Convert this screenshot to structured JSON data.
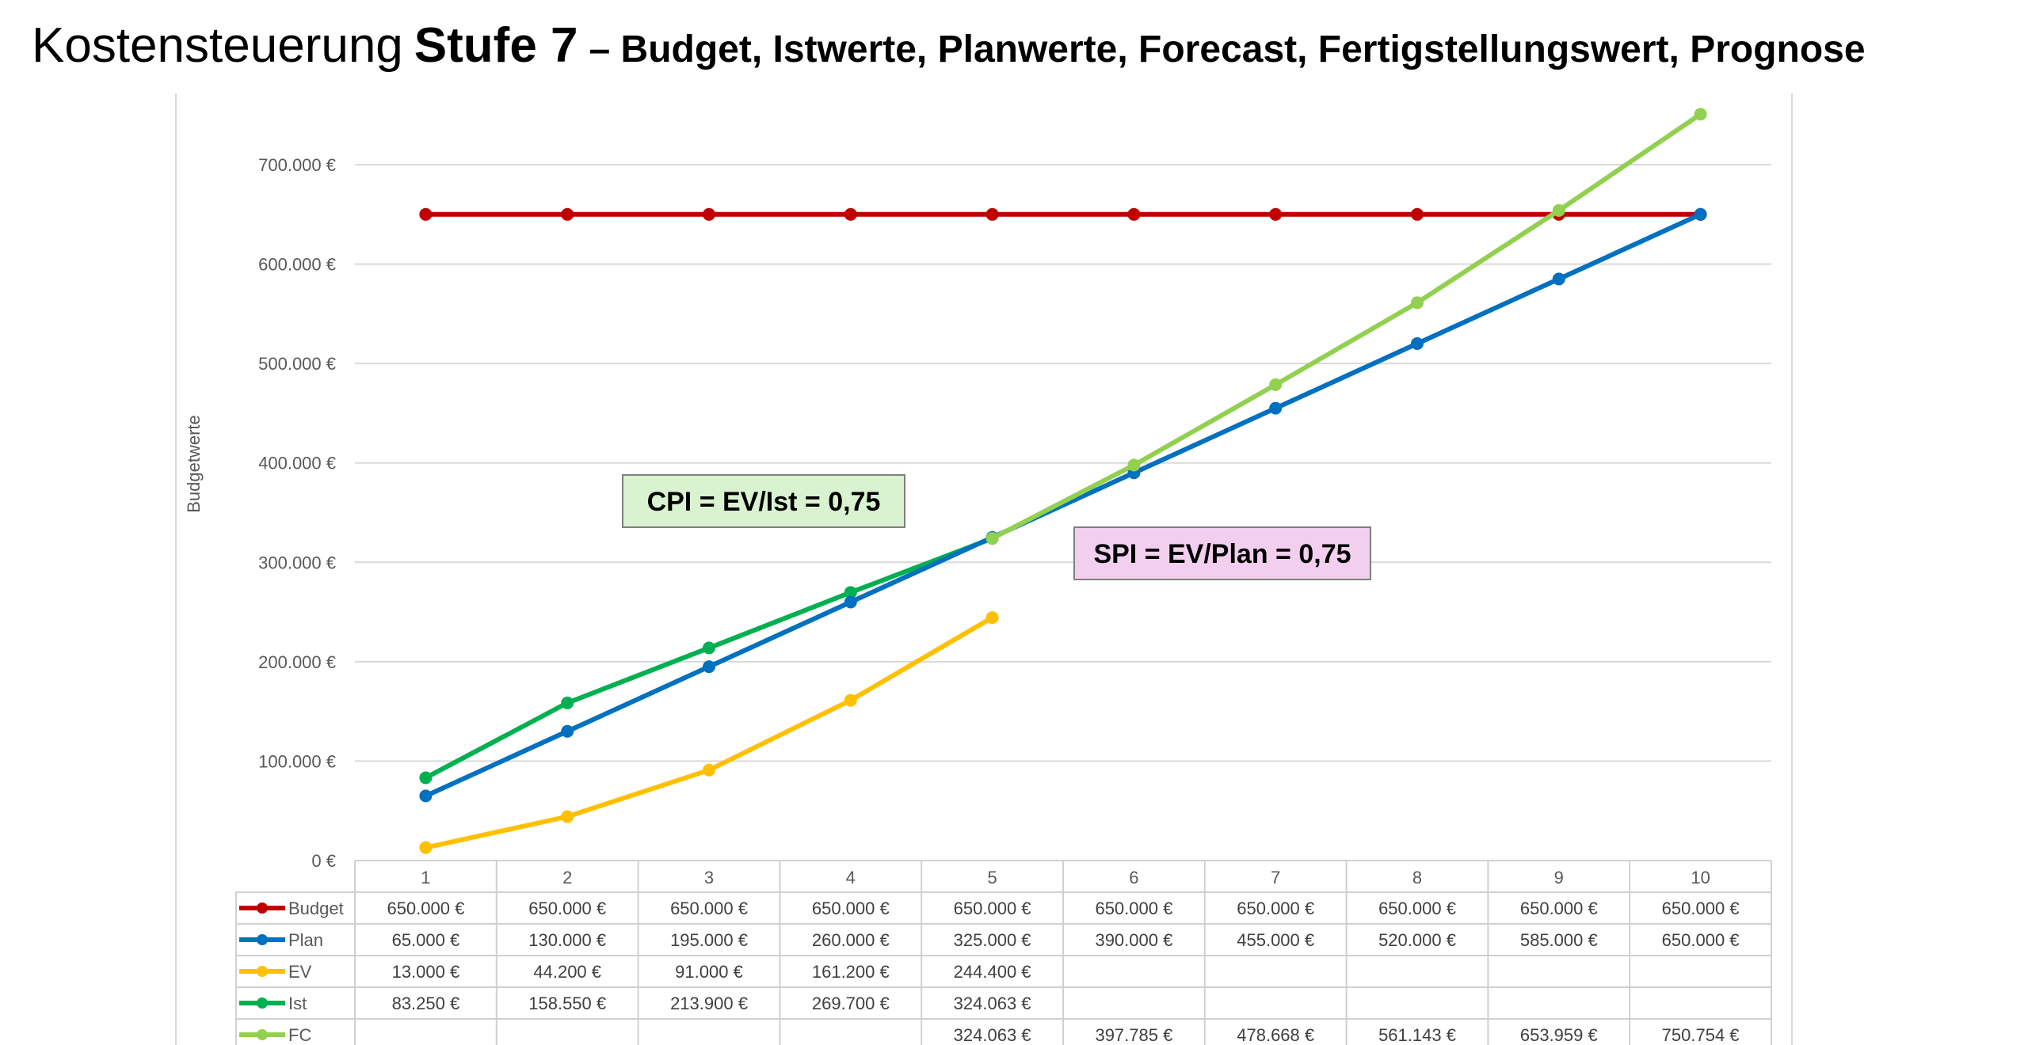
{
  "title": {
    "main": "Kostensteuerung",
    "stage": "Stufe 7",
    "subtitle": "– Budget, Istwerte, Planwerte, Forecast, Fertigstellungswert, Prognose"
  },
  "chart_data": {
    "type": "line",
    "ylabel": "Budgetwerte",
    "ylim": [
      0,
      700000
    ],
    "yticks": [
      0,
      100000,
      200000,
      300000,
      400000,
      500000,
      600000,
      700000
    ],
    "ytick_labels": [
      "0 €",
      "100.000 €",
      "200.000 €",
      "300.000 €",
      "400.000 €",
      "500.000 €",
      "600.000 €",
      "700.000 €"
    ],
    "categories": [
      "1",
      "2",
      "3",
      "4",
      "5",
      "6",
      "7",
      "8",
      "9",
      "10"
    ],
    "grid": true,
    "legend": "data-table",
    "series": [
      {
        "name": "Budget",
        "color": "#c00000",
        "values": [
          650000,
          650000,
          650000,
          650000,
          650000,
          650000,
          650000,
          650000,
          650000,
          650000
        ],
        "labels": [
          "650.000 €",
          "650.000 €",
          "650.000 €",
          "650.000 €",
          "650.000 €",
          "650.000 €",
          "650.000 €",
          "650.000 €",
          "650.000 €",
          "650.000 €"
        ]
      },
      {
        "name": "Plan",
        "color": "#0070c0",
        "values": [
          65000,
          130000,
          195000,
          260000,
          325000,
          390000,
          455000,
          520000,
          585000,
          650000
        ],
        "labels": [
          "65.000 €",
          "130.000 €",
          "195.000 €",
          "260.000 €",
          "325.000 €",
          "390.000 €",
          "455.000 €",
          "520.000 €",
          "585.000 €",
          "650.000 €"
        ]
      },
      {
        "name": "EV",
        "color": "#ffc000",
        "values": [
          13000,
          44200,
          91000,
          161200,
          244400,
          null,
          null,
          null,
          null,
          null
        ],
        "labels": [
          "13.000 €",
          "44.200 €",
          "91.000 €",
          "161.200 €",
          "244.400 €",
          "",
          "",
          "",
          "",
          ""
        ]
      },
      {
        "name": "Ist",
        "color": "#00b050",
        "values": [
          83250,
          158550,
          213900,
          269700,
          324063,
          null,
          null,
          null,
          null,
          null
        ],
        "labels": [
          "83.250 €",
          "158.550 €",
          "213.900 €",
          "269.700 €",
          "324.063 €",
          "",
          "",
          "",
          "",
          ""
        ]
      },
      {
        "name": "FC",
        "color": "#92d050",
        "values": [
          null,
          null,
          null,
          null,
          324063,
          397785,
          478668,
          561143,
          653959,
          750754
        ],
        "labels": [
          "",
          "",
          "",
          "",
          "324.063 €",
          "397.785 €",
          "478.668 €",
          "561.143 €",
          "653.959 €",
          "750.754 €"
        ]
      }
    ],
    "annotations": [
      {
        "text": "CPI = EV/Ist = 0,75",
        "fill": "#d9f2d0"
      },
      {
        "text": "SPI = EV/Plan = 0,75",
        "fill": "#f2cfee"
      }
    ]
  }
}
